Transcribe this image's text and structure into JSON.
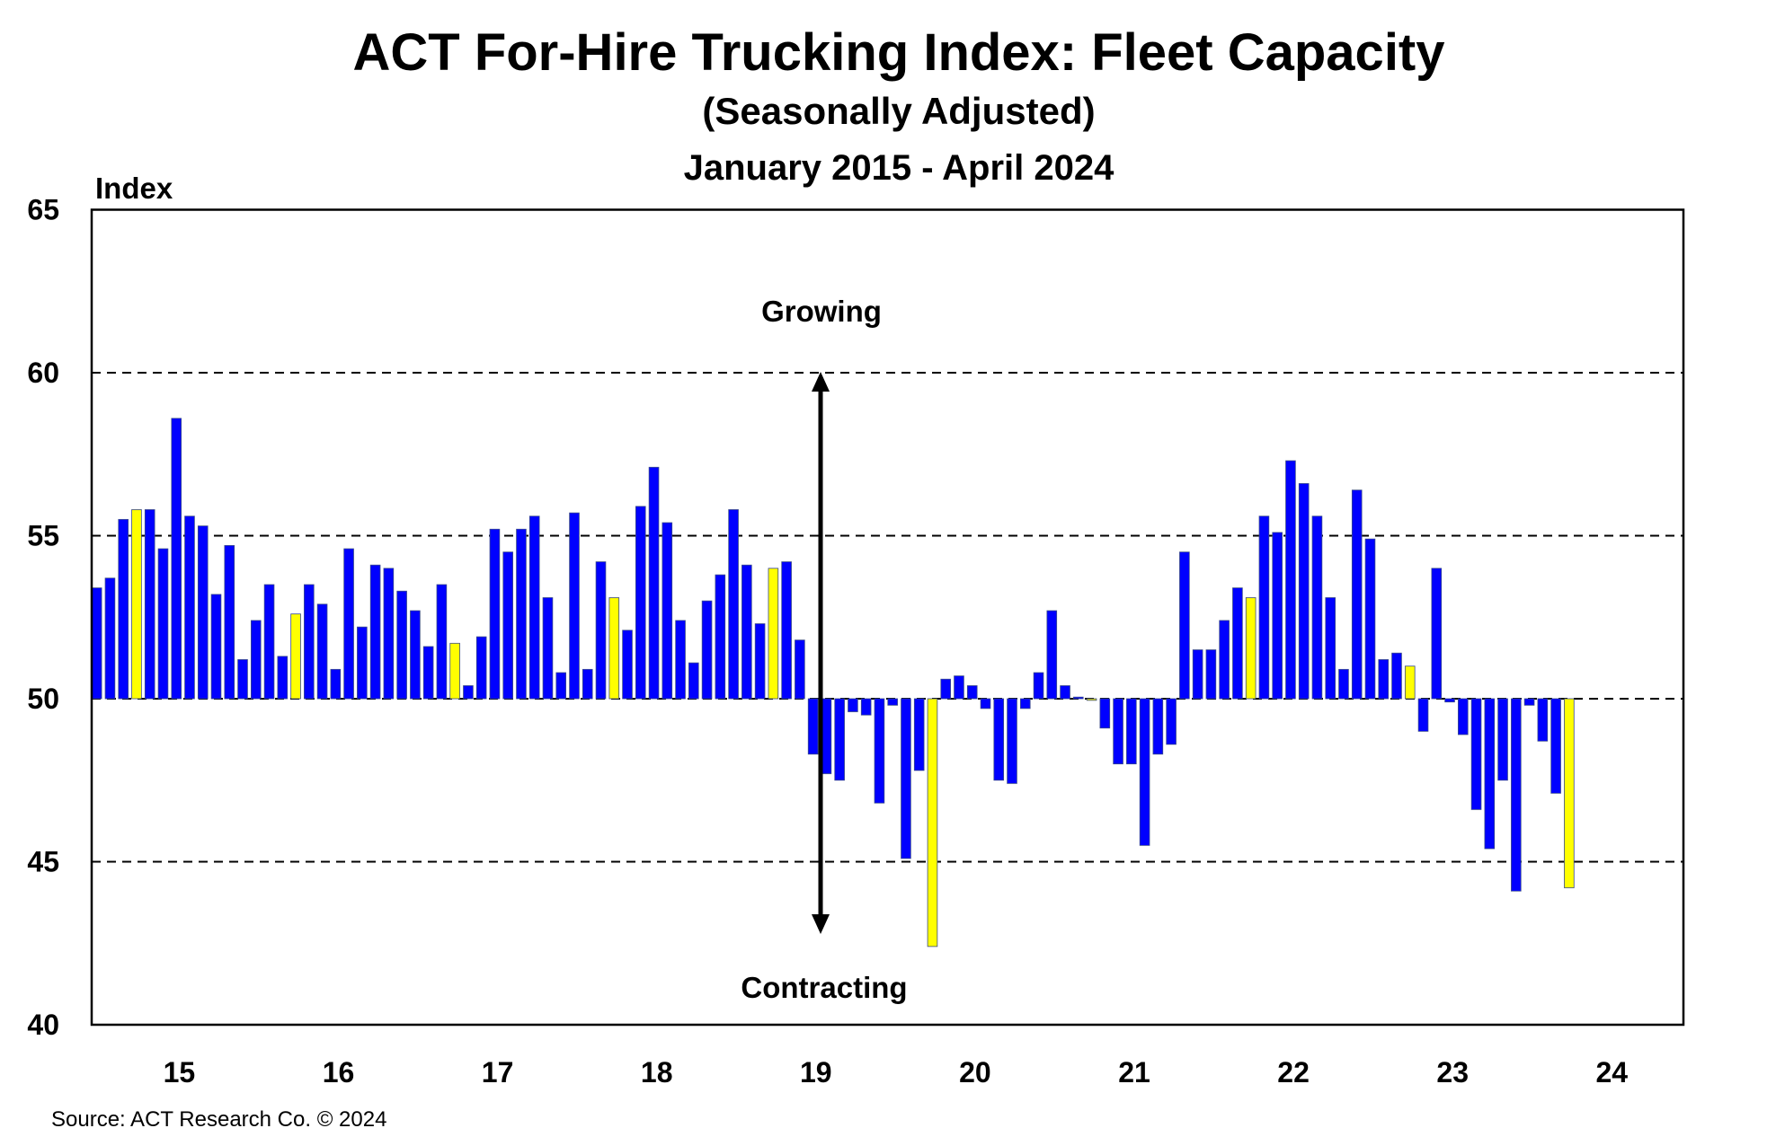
{
  "chart_data": {
    "type": "bar",
    "title": "ACT For-Hire Trucking Index: Fleet Capacity",
    "subtitle": "(Seasonally Adjusted)",
    "period": "January 2015 - April 2024",
    "ylabel": "Index",
    "xlabel": "",
    "ylim": [
      40,
      65
    ],
    "baseline": 50,
    "yticks": [
      "65",
      "60",
      "55",
      "50",
      "45",
      "40"
    ],
    "xticks": [
      "15",
      "16",
      "17",
      "18",
      "19",
      "20",
      "21",
      "22",
      "23",
      "24"
    ],
    "grid": "dashed horizontal at 45, 50, 55, 60",
    "annotations": {
      "up": "Growing",
      "down": "Contracting"
    },
    "colors": {
      "bar": "#0000FF",
      "highlight": "#FFFF00",
      "highlight_month": "April"
    },
    "values": [
      53.4,
      53.7,
      55.5,
      55.8,
      55.8,
      54.6,
      58.6,
      55.6,
      55.3,
      53.2,
      54.7,
      51.2,
      52.4,
      53.5,
      51.3,
      52.6,
      53.5,
      52.9,
      50.9,
      54.6,
      52.2,
      54.1,
      54.0,
      53.3,
      52.7,
      51.6,
      53.5,
      51.7,
      50.4,
      51.9,
      55.2,
      54.5,
      55.2,
      55.6,
      53.1,
      50.8,
      55.7,
      50.9,
      54.2,
      53.1,
      52.1,
      55.9,
      57.1,
      55.4,
      52.4,
      51.1,
      53.0,
      53.8,
      55.8,
      54.1,
      52.3,
      54.0,
      54.2,
      51.8,
      48.3,
      47.7,
      47.5,
      49.6,
      49.5,
      46.8,
      49.8,
      45.1,
      47.8,
      42.4,
      50.6,
      50.7,
      50.4,
      49.7,
      47.5,
      47.4,
      49.7,
      50.8,
      52.7,
      50.4,
      50.05,
      49.95,
      49.1,
      48.0,
      48.0,
      45.5,
      48.3,
      48.6,
      54.5,
      51.5,
      51.5,
      52.4,
      53.4,
      53.1,
      55.6,
      55.1,
      57.3,
      56.6,
      55.6,
      53.1,
      50.9,
      56.4,
      54.9,
      51.2,
      51.4,
      51.0,
      49.0,
      54.0,
      49.9,
      48.9,
      46.6,
      45.4,
      47.5,
      44.1,
      49.8,
      48.7,
      47.1,
      44.2
    ],
    "source": "Source: ACT Research Co. © 2024"
  }
}
